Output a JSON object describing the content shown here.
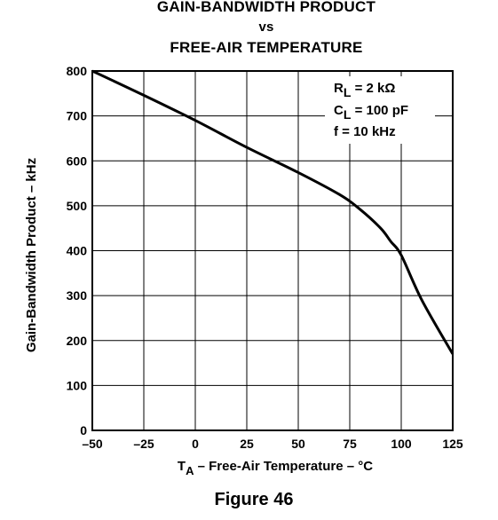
{
  "chart_data": {
    "type": "line",
    "title_lines": [
      "GAIN-BANDWIDTH PRODUCT",
      "vs",
      "FREE-AIR TEMPERATURE"
    ],
    "xlabel": {
      "symbol": "T",
      "subscript": "A",
      "rest": " – Free-Air Temperature – °C"
    },
    "ylabel": "Gain-Bandwidth Product – kHz",
    "xlim": [
      -50,
      125
    ],
    "ylim": [
      0,
      800
    ],
    "x_ticks": [
      -50,
      -25,
      0,
      25,
      50,
      75,
      100,
      125
    ],
    "x_tick_labels": [
      "–50",
      "–25",
      "0",
      "25",
      "50",
      "75",
      "100",
      "125"
    ],
    "y_ticks": [
      0,
      100,
      200,
      300,
      400,
      500,
      600,
      700,
      800
    ],
    "y_tick_labels": [
      "0",
      "100",
      "200",
      "300",
      "400",
      "500",
      "600",
      "700",
      "800"
    ],
    "grid": true,
    "series": [
      {
        "x": [
          -50,
          -25,
          0,
          25,
          50,
          70,
          80,
          90,
          95,
          100,
          110,
          125
        ],
        "y": [
          800,
          746,
          690,
          630,
          574,
          525,
          492,
          450,
          420,
          390,
          290,
          170
        ]
      }
    ],
    "conditions": [
      {
        "main": "R",
        "sub": "L",
        "rest": " = 2 kΩ"
      },
      {
        "main": "C",
        "sub": "L",
        "rest": " = 100 pF"
      },
      {
        "main": "f = 10 kHz",
        "sub": "",
        "rest": ""
      }
    ]
  },
  "caption": "Figure 46"
}
